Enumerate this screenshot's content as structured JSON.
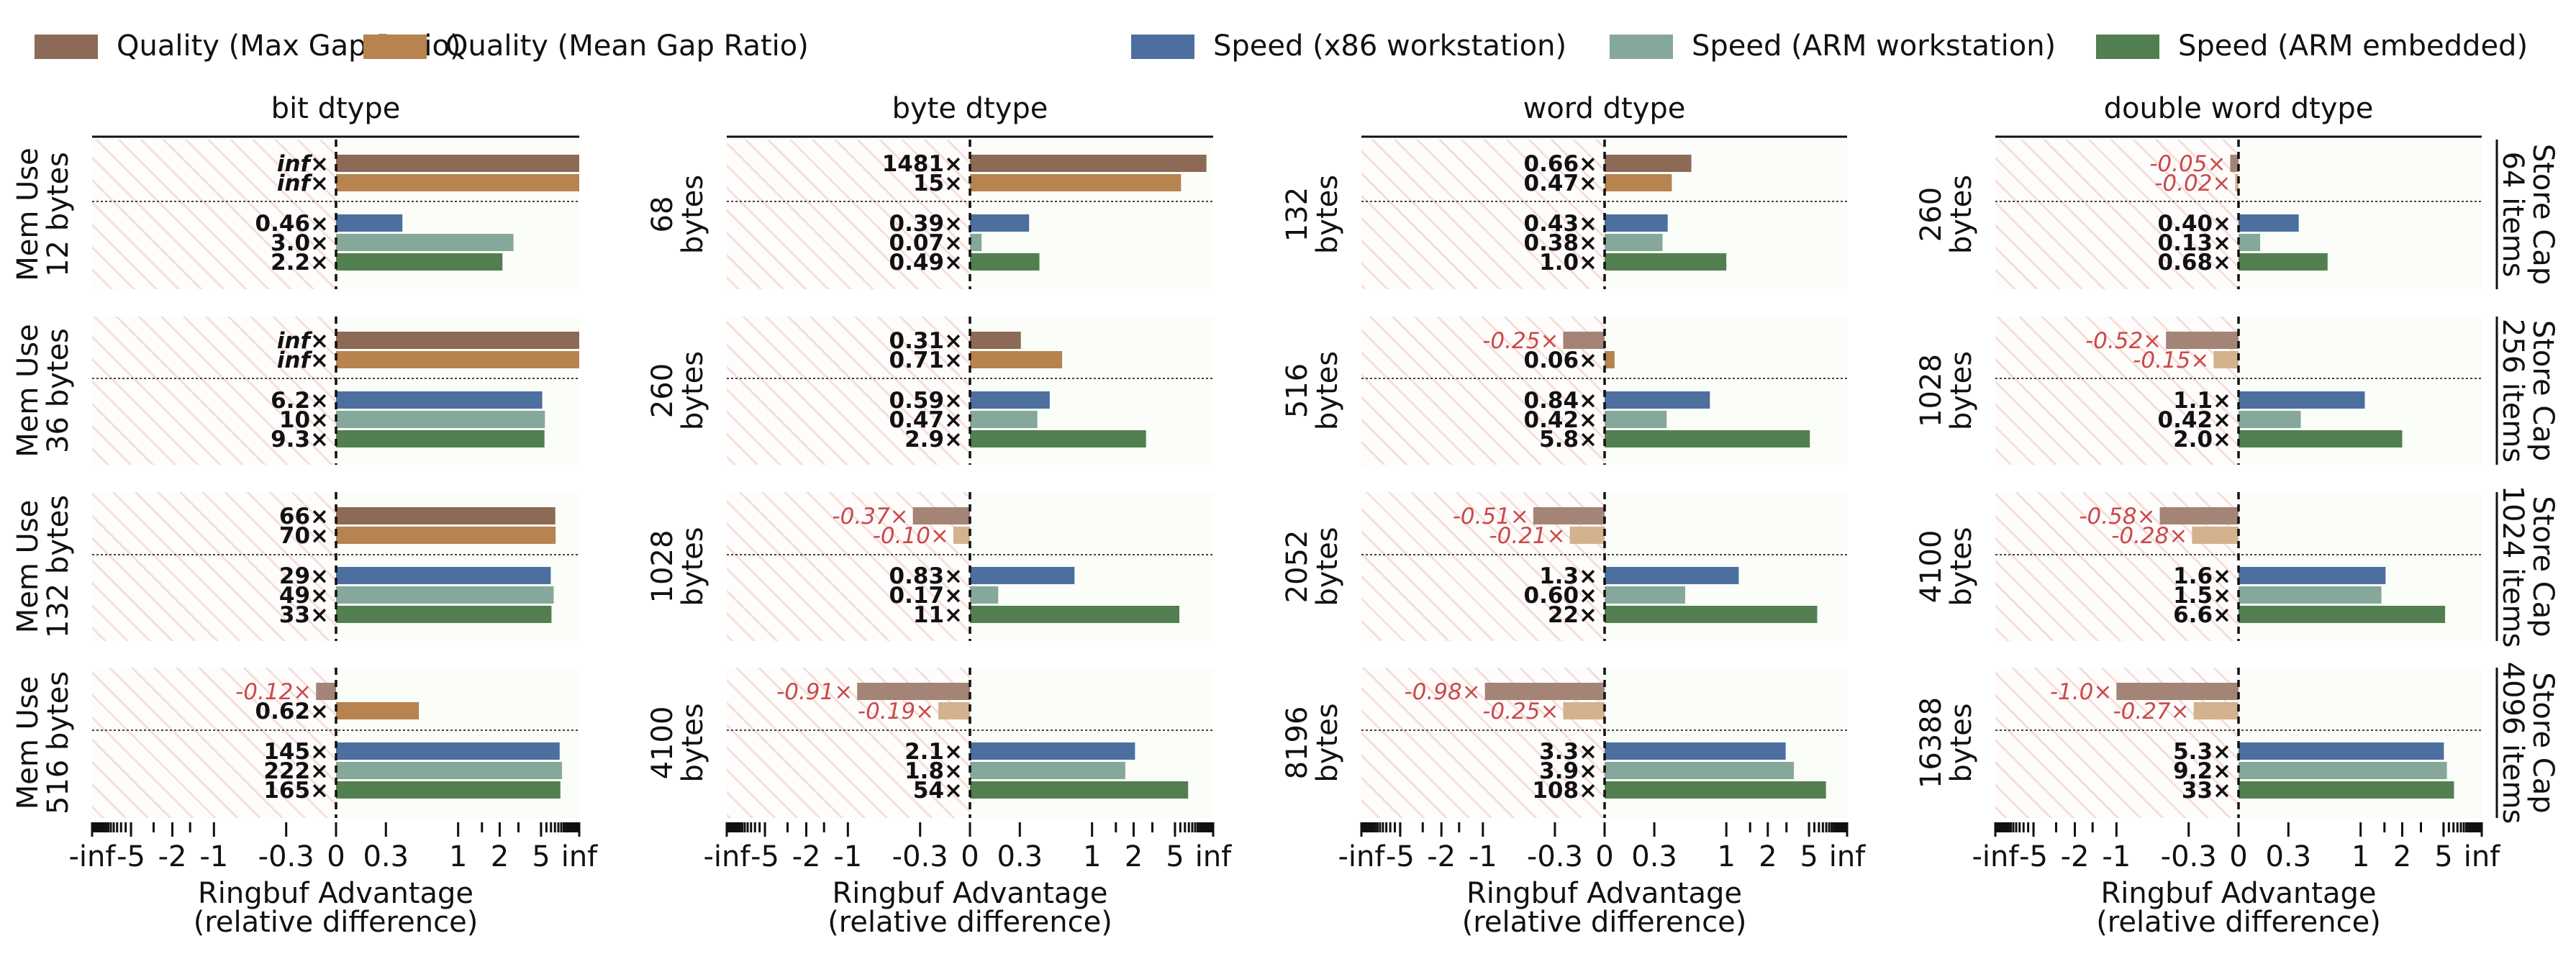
{
  "chart_data": {
    "type": "bar",
    "orientation": "horizontal",
    "legend": {
      "placement": "top",
      "entries": [
        {
          "name": "Quality (Max Gap Ratio)",
          "color": "#8c6a55"
        },
        {
          "name": "Quality (Mean Gap Ratio)",
          "color": "#b7834f"
        },
        {
          "name": "Speed (x86 workstation)",
          "color": "#4c6fa0"
        },
        {
          "name": "Speed (ARM workstation)",
          "color": "#86a89a"
        },
        {
          "name": "Speed (ARM embedded)",
          "color": "#527f4f"
        }
      ]
    },
    "negative_colors": {
      "max_gap": "#a38476",
      "mean_gap": "#d3b28d"
    },
    "columns": [
      "bit dtype",
      "byte dtype",
      "word dtype",
      "double word dtype"
    ],
    "rows": [
      "Store Cap\n64 items",
      "Store Cap\n256 items",
      "Store Cap\n1024 items",
      "Store Cap\n4096 items"
    ],
    "row_ylabels": [
      [
        "Mem Use\n12 bytes",
        "68\nbytes",
        "132\nbytes",
        "260\nbytes"
      ],
      [
        "Mem Use\n36 bytes",
        "260\nbytes",
        "516\nbytes",
        "1028\nbytes"
      ],
      [
        "Mem Use\n132 bytes",
        "1028\nbytes",
        "2052\nbytes",
        "4100\nbytes"
      ],
      [
        "Mem Use\n516 bytes",
        "4100\nbytes",
        "8196\nbytes",
        "16388\nbytes"
      ]
    ],
    "series_order": [
      "Quality (Max Gap Ratio)",
      "Quality (Mean Gap Ratio)",
      "Speed (x86 workstation)",
      "Speed (ARM workstation)",
      "Speed (ARM embedded)"
    ],
    "values": [
      [
        [
          [
            "inf",
            "inf"
          ],
          [
            "0.46",
            "3.0",
            "2.2"
          ]
        ],
        [
          [
            "1481",
            "15"
          ],
          [
            "0.39",
            "0.07",
            "0.49"
          ]
        ],
        [
          [
            "0.66",
            "0.47"
          ],
          [
            "0.43",
            "0.38",
            "1.0"
          ]
        ],
        [
          [
            "-0.05",
            "-0.02"
          ],
          [
            "0.40",
            "0.13",
            "0.68"
          ]
        ]
      ],
      [
        [
          [
            "inf",
            "inf"
          ],
          [
            "6.2",
            "10",
            "9.3"
          ]
        ],
        [
          [
            "0.31",
            "0.71"
          ],
          [
            "0.59",
            "0.47",
            "2.9"
          ]
        ],
        [
          [
            "-0.25",
            "0.06"
          ],
          [
            "0.84",
            "0.42",
            "5.8"
          ]
        ],
        [
          [
            "-0.52",
            "-0.15"
          ],
          [
            "1.1",
            "0.42",
            "2.0"
          ]
        ]
      ],
      [
        [
          [
            "66",
            "70"
          ],
          [
            "29",
            "49",
            "33"
          ]
        ],
        [
          [
            "-0.37",
            "-0.10"
          ],
          [
            "0.83",
            "0.17",
            "11"
          ]
        ],
        [
          [
            "-0.51",
            "-0.21"
          ],
          [
            "1.3",
            "0.60",
            "22"
          ]
        ],
        [
          [
            "-0.58",
            "-0.28"
          ],
          [
            "1.6",
            "1.5",
            "6.6"
          ]
        ]
      ],
      [
        [
          [
            "-0.12",
            "0.62"
          ],
          [
            "145",
            "222",
            "165"
          ]
        ],
        [
          [
            "-0.91",
            "-0.19"
          ],
          [
            "2.1",
            "1.8",
            "54"
          ]
        ],
        [
          [
            "-0.98",
            "-0.25"
          ],
          [
            "3.3",
            "3.9",
            "108"
          ]
        ],
        [
          [
            "-1.0",
            "-0.27"
          ],
          [
            "5.3",
            "9.2",
            "33"
          ]
        ]
      ]
    ],
    "label_suffix": "×",
    "x_ticks": [
      "-inf",
      "-5",
      "-2",
      "-1",
      "-0.3",
      "0",
      "0.3",
      "1",
      "2",
      "5",
      "inf"
    ],
    "x_tick_values": [
      -1000000,
      -5,
      -2,
      -1,
      -0.3,
      0,
      0.3,
      1,
      2,
      5,
      1000000
    ],
    "xlabel": "Ringbuf Advantage\n(relative difference)",
    "xlim": [
      "-inf",
      "inf"
    ],
    "grid": false
  }
}
